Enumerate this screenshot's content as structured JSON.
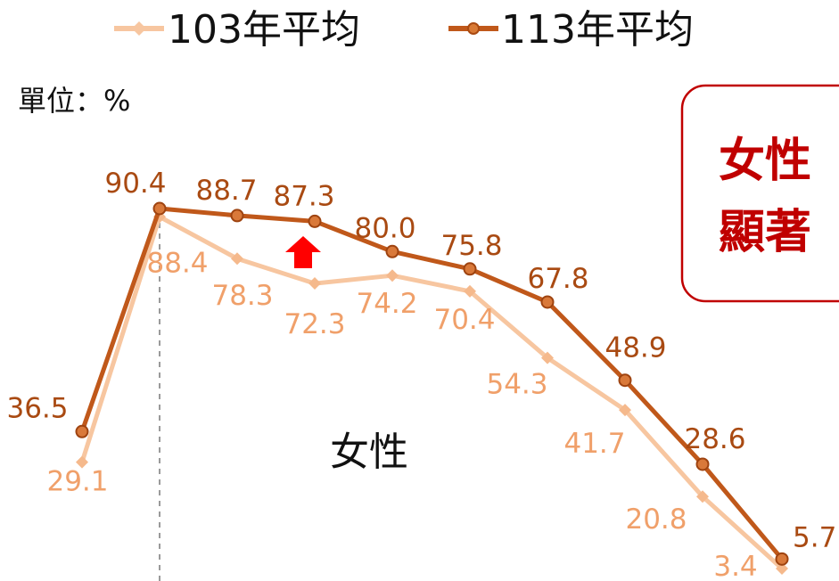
{
  "unit_label": "單位：%",
  "center_label": "女性",
  "callout": {
    "line1": "女性",
    "line2": "顯著"
  },
  "colors": {
    "series_103": "#f7c6a0",
    "series_113": "#c0581a",
    "label_103": "#f0a06a",
    "label_113": "#a94a12",
    "arrow": "#ff0000",
    "callout_border": "#c00000"
  },
  "chart_data": {
    "type": "line",
    "categories": [
      "",
      "",
      "",
      "",
      "",
      "",
      "",
      "",
      "",
      ""
    ],
    "series": [
      {
        "name": "103年平均",
        "marker": "diamond",
        "values": [
          29.1,
          88.4,
          78.3,
          72.3,
          74.2,
          70.4,
          54.3,
          41.7,
          20.8,
          3.4
        ]
      },
      {
        "name": "113年平均",
        "marker": "circle",
        "values": [
          36.5,
          90.4,
          88.7,
          87.3,
          80.0,
          75.8,
          67.8,
          48.9,
          28.6,
          5.7
        ]
      }
    ],
    "ylim": [
      3.4,
      90.4
    ],
    "grid": false,
    "legend": "top",
    "annotations": [
      "up-arrow-at-87.3"
    ]
  }
}
